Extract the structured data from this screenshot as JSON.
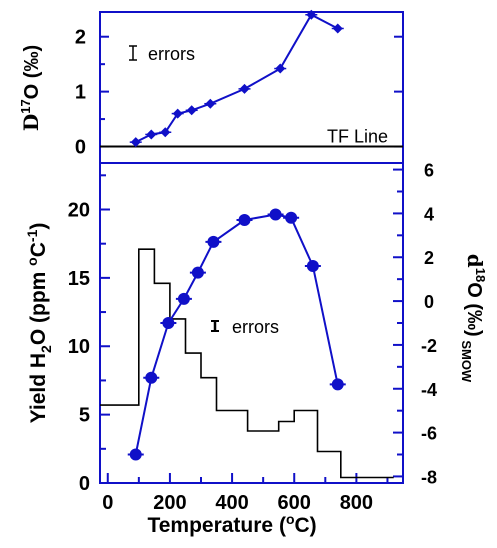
{
  "chart_data": [
    {
      "type": "line",
      "panel": "top",
      "ylabel_symbol": "D",
      "ylabel_sup": "17",
      "ylabel_rest": "O (‰)",
      "xlim": [
        -25,
        950
      ],
      "ylim": [
        -0.3,
        2.45
      ],
      "yticks": [
        0,
        1,
        2
      ],
      "series": [
        {
          "marker": "diamond",
          "color": "#1010c8",
          "x": [
            90,
            140,
            185,
            225,
            270,
            330,
            440,
            555,
            655,
            740
          ],
          "y": [
            0.08,
            0.22,
            0.26,
            0.6,
            0.66,
            0.78,
            1.05,
            1.42,
            2.4,
            2.15
          ]
        }
      ],
      "reference_line": {
        "y": 0,
        "label": "TF Line"
      },
      "legend": {
        "label": "errors",
        "position": "top-left"
      }
    },
    {
      "type": "line",
      "panel": "bottom",
      "xlabel": "Temperature (°C)",
      "xlabel_parts": {
        "pre": "Temperature (",
        "sup": "o",
        "post": "C)"
      },
      "ylabel": "Yield H2O (ppm °C-1)",
      "ylabel_parts": {
        "pre": "Yield H",
        "sub": "2",
        "mid": "O (ppm ",
        "sup1": "o",
        "mid2": "C",
        "sup2": "-1",
        "post": ")"
      },
      "y2label_parts": {
        "symbol": "d",
        "sup": "18",
        "rest": "O",
        "unit_pre": "(‰)",
        "sub": "SMOW"
      },
      "xlim": [
        -25,
        950
      ],
      "xticks": [
        0,
        200,
        400,
        600,
        800
      ],
      "ylim": [
        0,
        23.4
      ],
      "yticks": [
        0,
        5,
        10,
        15,
        20
      ],
      "y2lim": [
        -8.3,
        6.3
      ],
      "y2ticks": [
        -8,
        -6,
        -4,
        -2,
        0,
        2,
        4,
        6
      ],
      "series": [
        {
          "kind": "step",
          "color": "#000000",
          "axis": "left",
          "edges": [
            -25,
            100,
            150,
            200,
            250,
            300,
            350,
            450,
            550,
            600,
            675,
            750,
            920
          ],
          "values": [
            5.7,
            17.1,
            14.6,
            12.0,
            9.5,
            7.7,
            5.3,
            3.8,
            4.5,
            5.3,
            2.3,
            0.4
          ]
        },
        {
          "kind": "line",
          "marker": "circle",
          "color": "#1010c8",
          "axis": "right",
          "x": [
            90,
            140,
            195,
            245,
            290,
            340,
            440,
            540,
            590,
            660,
            740
          ],
          "y": [
            -7.0,
            -3.5,
            -1.0,
            0.1,
            1.3,
            2.7,
            3.7,
            3.95,
            3.8,
            1.6,
            -3.8
          ]
        }
      ],
      "legend": {
        "label": "errors",
        "position": "center-right"
      }
    }
  ]
}
